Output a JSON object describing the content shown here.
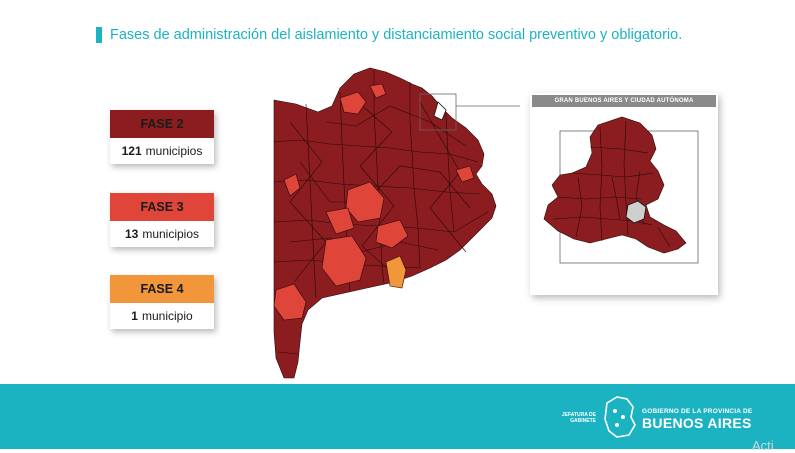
{
  "title": "Fases de administración del aislamiento y distanciamiento social preventivo y obligatorio.",
  "colors": {
    "accent": "#1bb3c2",
    "fase2": "#8b1c1f",
    "fase3": "#e0453a",
    "fase4": "#f1963b",
    "border": "#2a0a0a"
  },
  "phases": [
    {
      "label": "FASE 2",
      "count": "121",
      "unit": "municipios",
      "color": "#8b1c1f"
    },
    {
      "label": "FASE 3",
      "count": "13",
      "unit": "municipios",
      "color": "#e0453a"
    },
    {
      "label": "FASE 4",
      "count": "1",
      "unit": "municipio",
      "color": "#f1963b"
    }
  ],
  "inset": {
    "title": "GRAN BUENOS AIRES Y CIUDAD AUTÓNOMA"
  },
  "footer": {
    "jefatura_line1": "JEFATURA DE",
    "jefatura_line2": "GABINETE",
    "gov_small": "GOBIERNO DE LA PROVINCIA DE",
    "gov_big": "BUENOS AIRES"
  },
  "watermark": "Acti"
}
